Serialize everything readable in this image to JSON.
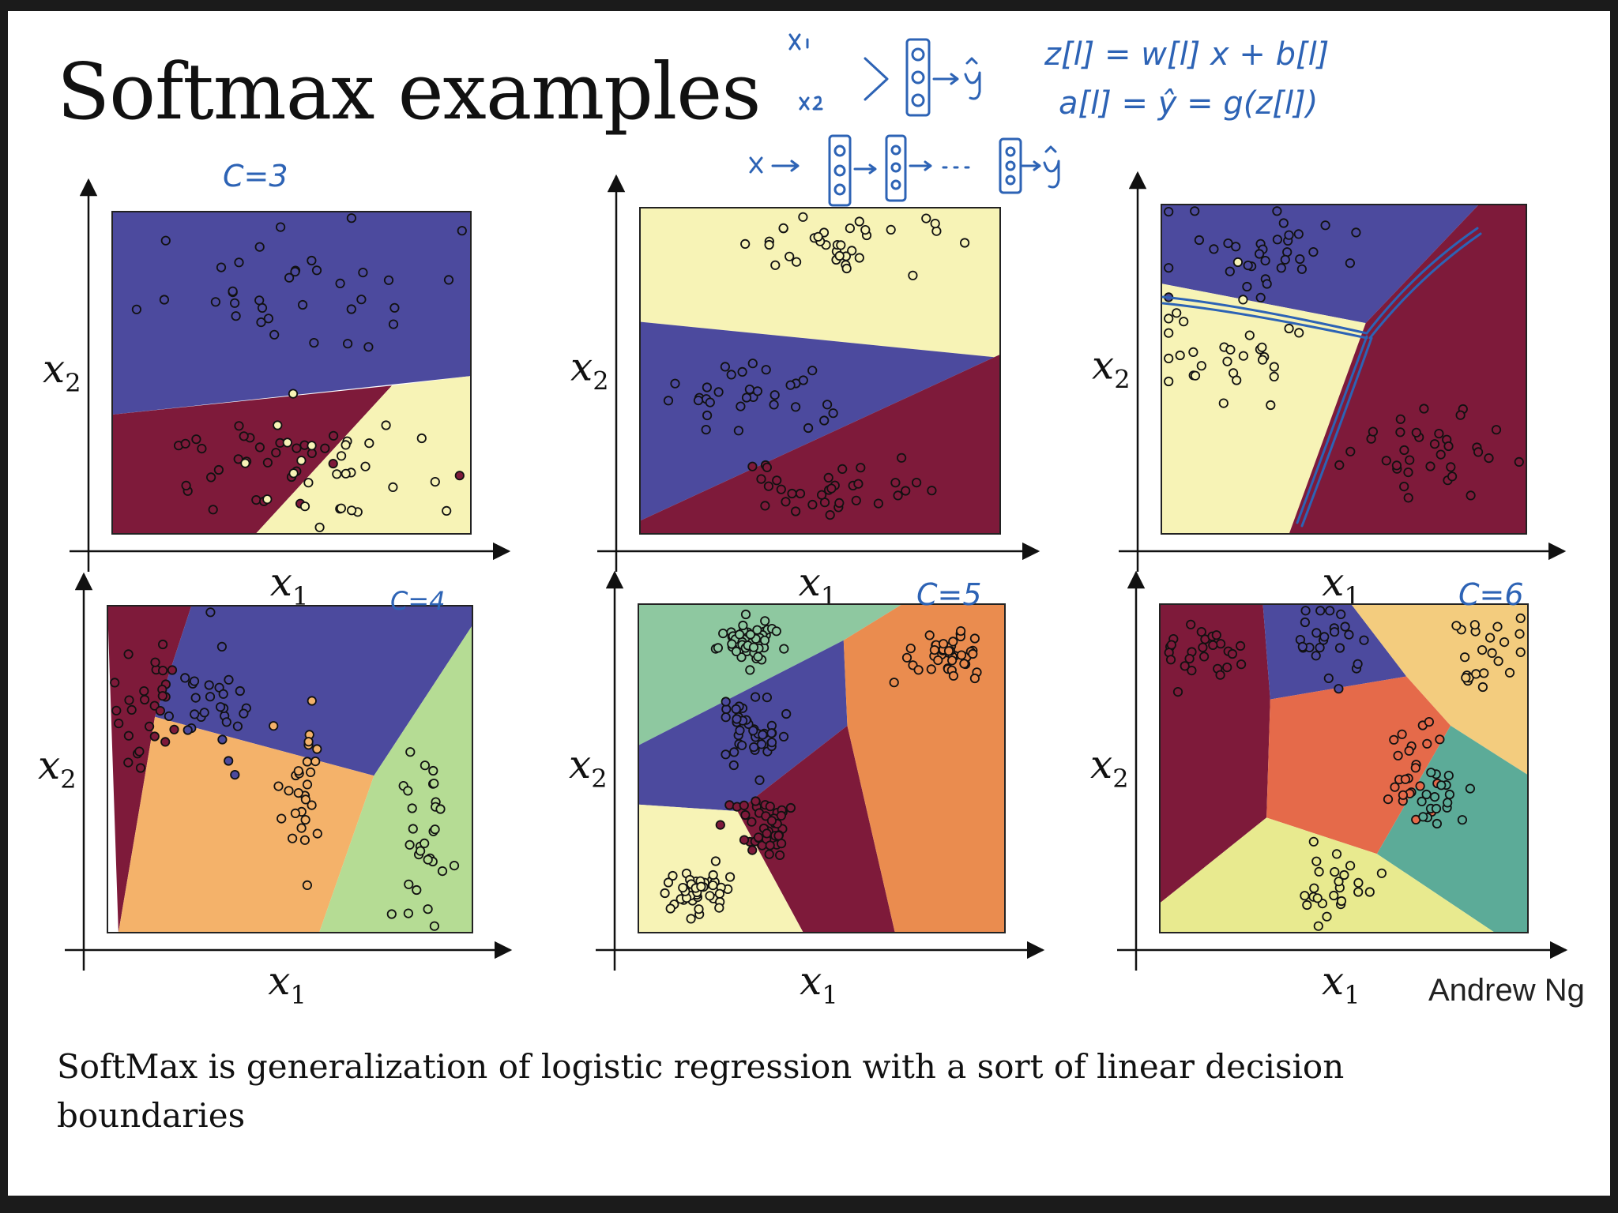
{
  "slide": {
    "title": "Softmax examples",
    "credit": "Andrew Ng",
    "caption": "SoftMax is generalization of logistic regression with a sort of linear decision boundaries"
  },
  "annotations": {
    "c3": "C=3",
    "c4": "C=4",
    "c5": "C=5",
    "c6": "C=6",
    "eq_z": "z[l] = w[l] x + b[l]",
    "eq_a": "a[l] = ŷ = g(z[l])",
    "net_small": "x1, x2 → [ooo] → ŷ",
    "net_deep": "x → [ooo] → [ooo] → ··· → [ooo] → ŷ"
  },
  "colors": {
    "blue": "#4c4a9e",
    "crimson": "#7e1a3a",
    "cream": "#f7f3b6",
    "light_green": "#b5dc94",
    "orange_light": "#f4b26a",
    "mint": "#8ec8a0",
    "orange": "#ea8c4f",
    "orange_red": "#e56a4a",
    "sand": "#f3cc7e",
    "teal": "#5cab98",
    "yellow_green": "#e8ea8f",
    "handwriting": "#2d63b5"
  },
  "chart_data": [
    {
      "type": "scatter",
      "subtype": "decision regions",
      "xlabel": "x1",
      "ylabel": "x2",
      "classes": 3,
      "regions": [
        {
          "color": "blue",
          "poly": [
            [
              0,
              1
            ],
            [
              1,
              1
            ],
            [
              1,
              0.49
            ],
            [
              0,
              0.37
            ]
          ]
        },
        {
          "color": "crimson",
          "poly": [
            [
              0,
              0.37
            ],
            [
              0.78,
              0.46
            ],
            [
              0.4,
              0
            ],
            [
              0,
              0
            ]
          ]
        },
        {
          "color": "cream",
          "poly": [
            [
              0.78,
              0.46
            ],
            [
              1,
              0.49
            ],
            [
              1,
              0
            ],
            [
              0.4,
              0
            ]
          ]
        }
      ],
      "clusters": [
        {
          "fill": "blue",
          "cx": 0.52,
          "cy": 0.76,
          "sx": 0.2,
          "sy": 0.12,
          "n": 36,
          "seed": 11
        },
        {
          "fill": "crimson",
          "cx": 0.42,
          "cy": 0.22,
          "sx": 0.18,
          "sy": 0.08,
          "n": 30,
          "seed": 12
        },
        {
          "fill": "cream",
          "cx": 0.58,
          "cy": 0.2,
          "sx": 0.17,
          "sy": 0.1,
          "n": 28,
          "seed": 13
        }
      ]
    },
    {
      "type": "scatter",
      "subtype": "decision regions",
      "xlabel": "x1",
      "ylabel": "x2",
      "classes": 3,
      "regions": [
        {
          "color": "cream",
          "poly": [
            [
              0,
              1
            ],
            [
              1,
              1
            ],
            [
              1,
              0.54
            ],
            [
              0,
              0.65
            ]
          ]
        },
        {
          "color": "blue",
          "poly": [
            [
              0,
              0.65
            ],
            [
              1,
              0.54
            ],
            [
              1,
              0.55
            ],
            [
              0,
              0.04
            ]
          ]
        },
        {
          "color": "crimson",
          "poly": [
            [
              0,
              0.04
            ],
            [
              1,
              0.55
            ],
            [
              1,
              0
            ],
            [
              0,
              0
            ]
          ]
        }
      ],
      "clusters": [
        {
          "fill": "cream",
          "cx": 0.55,
          "cy": 0.89,
          "sx": 0.14,
          "sy": 0.04,
          "n": 34,
          "seed": 21
        },
        {
          "fill": "blue",
          "cx": 0.27,
          "cy": 0.41,
          "sx": 0.13,
          "sy": 0.05,
          "n": 32,
          "seed": 22
        },
        {
          "fill": "crimson",
          "cx": 0.57,
          "cy": 0.14,
          "sx": 0.15,
          "sy": 0.05,
          "n": 34,
          "seed": 23
        }
      ]
    },
    {
      "type": "scatter",
      "subtype": "decision regions",
      "xlabel": "x1",
      "ylabel": "x2",
      "classes": 3,
      "regions": [
        {
          "color": "blue",
          "poly": [
            [
              0,
              1
            ],
            [
              0.87,
              1
            ],
            [
              0.56,
              0.64
            ],
            [
              0,
              0.76
            ]
          ]
        },
        {
          "color": "cream",
          "poly": [
            [
              0,
              0.76
            ],
            [
              0.56,
              0.64
            ],
            [
              0.35,
              0
            ],
            [
              0,
              0
            ]
          ]
        },
        {
          "color": "crimson",
          "poly": [
            [
              0.87,
              1
            ],
            [
              1,
              1
            ],
            [
              1,
              0
            ],
            [
              0.35,
              0
            ],
            [
              0.56,
              0.64
            ]
          ]
        }
      ],
      "clusters": [
        {
          "fill": "blue",
          "cx": 0.28,
          "cy": 0.84,
          "sx": 0.15,
          "sy": 0.07,
          "n": 34,
          "seed": 31
        },
        {
          "fill": "cream",
          "cx": 0.2,
          "cy": 0.56,
          "sx": 0.12,
          "sy": 0.08,
          "n": 30,
          "seed": 32
        },
        {
          "fill": "crimson",
          "cx": 0.72,
          "cy": 0.24,
          "sx": 0.13,
          "sy": 0.08,
          "n": 34,
          "seed": 33
        }
      ]
    },
    {
      "type": "scatter",
      "subtype": "decision regions",
      "xlabel": "x1",
      "ylabel": "x2",
      "classes": 4,
      "regions": [
        {
          "color": "crimson",
          "poly": [
            [
              0,
              1
            ],
            [
              0.23,
              1
            ],
            [
              0.13,
              0.66
            ],
            [
              0.03,
              0
            ]
          ]
        },
        {
          "color": "blue",
          "poly": [
            [
              0.23,
              1
            ],
            [
              1,
              1
            ],
            [
              1,
              0.94
            ],
            [
              0.73,
              0.48
            ],
            [
              0.13,
              0.66
            ]
          ]
        },
        {
          "color": "orange_light",
          "poly": [
            [
              0.13,
              0.66
            ],
            [
              0.73,
              0.48
            ],
            [
              0.58,
              0
            ],
            [
              0.03,
              0
            ]
          ]
        },
        {
          "color": "light_green",
          "poly": [
            [
              0.73,
              0.48
            ],
            [
              1,
              0.94
            ],
            [
              1,
              0
            ],
            [
              0.58,
              0
            ]
          ]
        }
      ],
      "clusters": [
        {
          "fill": "crimson",
          "cx": 0.11,
          "cy": 0.72,
          "sx": 0.05,
          "sy": 0.11,
          "n": 28,
          "seed": 41
        },
        {
          "fill": "blue",
          "cx": 0.29,
          "cy": 0.73,
          "sx": 0.05,
          "sy": 0.1,
          "n": 28,
          "seed": 42
        },
        {
          "fill": "orange_light",
          "cx": 0.54,
          "cy": 0.44,
          "sx": 0.04,
          "sy": 0.12,
          "n": 28,
          "seed": 43
        },
        {
          "fill": "light_green",
          "cx": 0.87,
          "cy": 0.3,
          "sx": 0.04,
          "sy": 0.14,
          "n": 30,
          "seed": 44
        }
      ]
    },
    {
      "type": "scatter",
      "subtype": "decision regions",
      "xlabel": "x1",
      "ylabel": "x2",
      "classes": 5,
      "regions": [
        {
          "color": "mint",
          "poly": [
            [
              0,
              1
            ],
            [
              0.72,
              1
            ],
            [
              0.56,
              0.89
            ],
            [
              0,
              0.57
            ]
          ]
        },
        {
          "color": "blue",
          "poly": [
            [
              0,
              0.57
            ],
            [
              0.56,
              0.89
            ],
            [
              0.57,
              0.63
            ],
            [
              0.27,
              0.37
            ],
            [
              0,
              0.39
            ]
          ]
        },
        {
          "color": "crimson",
          "poly": [
            [
              0.27,
              0.37
            ],
            [
              0.57,
              0.63
            ],
            [
              0.7,
              0
            ],
            [
              0.45,
              0
            ]
          ]
        },
        {
          "color": "cream",
          "poly": [
            [
              0,
              0.39
            ],
            [
              0.27,
              0.37
            ],
            [
              0.45,
              0
            ],
            [
              0,
              0
            ]
          ]
        },
        {
          "color": "orange",
          "poly": [
            [
              0.72,
              1
            ],
            [
              1,
              1
            ],
            [
              1,
              0
            ],
            [
              0.7,
              0
            ],
            [
              0.57,
              0.63
            ],
            [
              0.56,
              0.89
            ]
          ]
        }
      ],
      "clusters": [
        {
          "fill": "mint",
          "cx": 0.3,
          "cy": 0.88,
          "sx": 0.045,
          "sy": 0.035,
          "n": 44,
          "seed": 51
        },
        {
          "fill": "blue",
          "cx": 0.3,
          "cy": 0.61,
          "sx": 0.04,
          "sy": 0.05,
          "n": 44,
          "seed": 52
        },
        {
          "fill": "crimson",
          "cx": 0.35,
          "cy": 0.32,
          "sx": 0.04,
          "sy": 0.04,
          "n": 44,
          "seed": 53
        },
        {
          "fill": "cream",
          "cx": 0.16,
          "cy": 0.13,
          "sx": 0.05,
          "sy": 0.04,
          "n": 44,
          "seed": 54
        },
        {
          "fill": "orange",
          "cx": 0.86,
          "cy": 0.84,
          "sx": 0.045,
          "sy": 0.035,
          "n": 44,
          "seed": 55
        }
      ]
    },
    {
      "type": "scatter",
      "subtype": "decision regions",
      "xlabel": "x1",
      "ylabel": "x2",
      "classes": 6,
      "regions": [
        {
          "color": "crimson",
          "poly": [
            [
              0,
              1
            ],
            [
              0.28,
              1
            ],
            [
              0.3,
              0.71
            ],
            [
              0.29,
              0.35
            ],
            [
              0,
              0.09
            ]
          ]
        },
        {
          "color": "blue",
          "poly": [
            [
              0.28,
              1
            ],
            [
              0.52,
              1
            ],
            [
              0.67,
              0.78
            ],
            [
              0.3,
              0.71
            ]
          ]
        },
        {
          "color": "sand",
          "poly": [
            [
              0.52,
              1
            ],
            [
              1,
              1
            ],
            [
              1,
              0.48
            ],
            [
              0.79,
              0.63
            ],
            [
              0.67,
              0.78
            ]
          ]
        },
        {
          "color": "orange_red",
          "poly": [
            [
              0.3,
              0.71
            ],
            [
              0.67,
              0.78
            ],
            [
              0.79,
              0.63
            ],
            [
              0.59,
              0.24
            ],
            [
              0.29,
              0.35
            ]
          ]
        },
        {
          "color": "teal",
          "poly": [
            [
              0.79,
              0.63
            ],
            [
              1,
              0.48
            ],
            [
              1,
              0
            ],
            [
              0.91,
              0
            ],
            [
              0.59,
              0.24
            ]
          ]
        },
        {
          "color": "yellow_green",
          "poly": [
            [
              0,
              0.09
            ],
            [
              0.29,
              0.35
            ],
            [
              0.59,
              0.24
            ],
            [
              0.91,
              0
            ],
            [
              0,
              0
            ]
          ]
        }
      ],
      "clusters": [
        {
          "fill": "crimson",
          "cx": 0.13,
          "cy": 0.84,
          "sx": 0.07,
          "sy": 0.06,
          "n": 26,
          "seed": 61
        },
        {
          "fill": "blue",
          "cx": 0.44,
          "cy": 0.88,
          "sx": 0.06,
          "sy": 0.06,
          "n": 24,
          "seed": 62
        },
        {
          "fill": "sand",
          "cx": 0.87,
          "cy": 0.87,
          "sx": 0.05,
          "sy": 0.06,
          "n": 22,
          "seed": 63
        },
        {
          "fill": "orange_red",
          "cx": 0.69,
          "cy": 0.52,
          "sx": 0.03,
          "sy": 0.09,
          "n": 24,
          "seed": 64
        },
        {
          "fill": "teal",
          "cx": 0.74,
          "cy": 0.4,
          "sx": 0.04,
          "sy": 0.06,
          "n": 18,
          "seed": 65
        },
        {
          "fill": "yellow_green",
          "cx": 0.46,
          "cy": 0.14,
          "sx": 0.06,
          "sy": 0.06,
          "n": 24,
          "seed": 66
        }
      ]
    }
  ]
}
